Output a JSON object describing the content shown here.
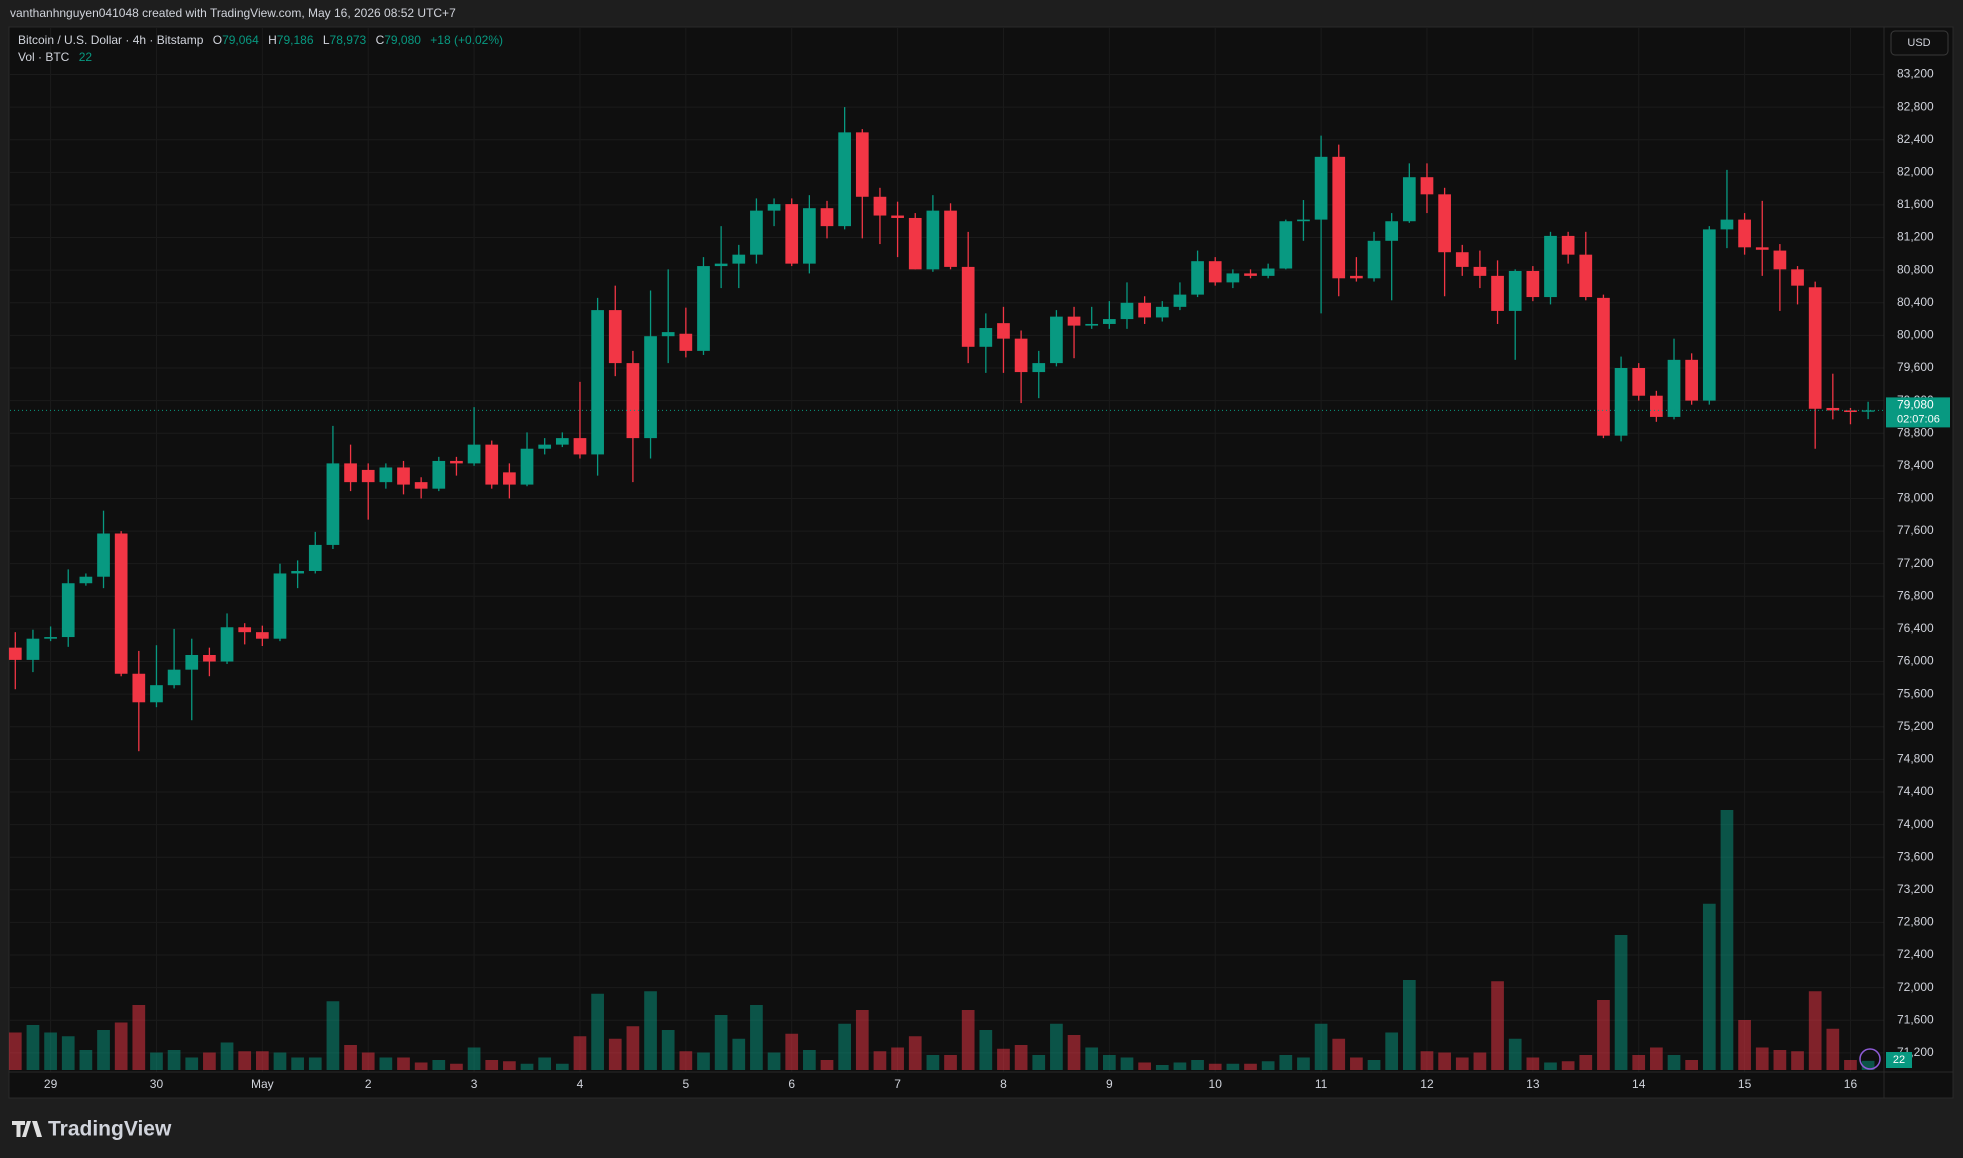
{
  "header": "vanthanhnguyen041048 created with TradingView.com, May 16, 2026 08:52 UTC+7",
  "brand": "TradingView",
  "currency_button": "USD",
  "chart_data": {
    "type": "candlestick",
    "legend": {
      "symbol": "Bitcoin / U.S. Dollar · 4h · Bitstamp",
      "items": [
        {
          "key": "O",
          "value": "79,064"
        },
        {
          "key": "H",
          "value": "79,186"
        },
        {
          "key": "L",
          "value": "78,973"
        },
        {
          "key": "C",
          "value": "79,080"
        }
      ],
      "change": "+18 (+0.02%)",
      "volume_name": "Vol · BTC",
      "volume_value": "22"
    },
    "up_color": "#089981",
    "down_color": "#f23645",
    "open": [
      76170,
      76020,
      76280,
      76300,
      76960,
      77040,
      77570,
      75850,
      75500,
      75710,
      75900,
      76080,
      76000,
      76420,
      76360,
      76280,
      77080,
      77110,
      77430,
      78430,
      78350,
      78200,
      78380,
      78200,
      78120,
      78460,
      78430,
      78660,
      78320,
      78170,
      78610,
      78660,
      78740,
      78540,
      80310,
      79660,
      78740,
      79990,
      80020,
      79810,
      80850,
      80880,
      80990,
      81530,
      81610,
      80880,
      81560,
      81340,
      82490,
      81700,
      81470,
      81440,
      80810,
      81530,
      80840,
      79860,
      80150,
      79960,
      79550,
      79660,
      80230,
      80120,
      80140,
      80200,
      80400,
      80220,
      80350,
      80500,
      80910,
      80650,
      80760,
      80730,
      80820,
      81400,
      81420,
      82190,
      80730,
      80700,
      81160,
      81400,
      81940,
      81730,
      81020,
      80840,
      80730,
      80300,
      80790,
      80470,
      81220,
      80990,
      80460,
      78770,
      79600,
      79260,
      79000,
      79700,
      79200,
      81300,
      81420,
      81080,
      81040,
      80810,
      80590,
      79110,
      79080,
      79064
    ],
    "high": [
      76360,
      76390,
      76430,
      77130,
      77080,
      77850,
      77600,
      76130,
      76200,
      76400,
      76280,
      76170,
      76590,
      76470,
      76440,
      77200,
      77240,
      77590,
      78890,
      78660,
      78430,
      78430,
      78460,
      78260,
      78510,
      78510,
      79120,
      78710,
      78430,
      78810,
      78740,
      78810,
      79430,
      80460,
      80610,
      79810,
      80550,
      80810,
      80340,
      80960,
      81340,
      81110,
      81680,
      81680,
      81680,
      81720,
      81650,
      82800,
      82530,
      81810,
      81640,
      81500,
      81720,
      81620,
      81270,
      80270,
      80350,
      80060,
      79810,
      80310,
      80350,
      80350,
      80420,
      80650,
      80480,
      80420,
      80650,
      81040,
      80960,
      80810,
      80810,
      80880,
      81420,
      81660,
      82450,
      82340,
      80960,
      81270,
      81500,
      82110,
      82110,
      81810,
      81110,
      81040,
      80920,
      80810,
      80850,
      81270,
      81270,
      81270,
      80500,
      79740,
      79660,
      79320,
      79960,
      79780,
      81340,
      82030,
      81500,
      81650,
      81120,
      80850,
      80660,
      79530,
      79110,
      79186
    ],
    "low": [
      75660,
      75870,
      76250,
      76180,
      76930,
      76900,
      75820,
      74900,
      75440,
      75670,
      75280,
      75820,
      75970,
      76210,
      76190,
      76250,
      76900,
      77080,
      77380,
      78090,
      77740,
      78120,
      78050,
      78000,
      78090,
      78280,
      78400,
      78120,
      78000,
      78150,
      78540,
      78630,
      78490,
      78280,
      79500,
      78200,
      78490,
      79660,
      79730,
      79760,
      80580,
      80580,
      80880,
      81340,
      80850,
      80760,
      81190,
      81300,
      81190,
      81120,
      80960,
      80810,
      80780,
      80810,
      79660,
      79540,
      79540,
      79170,
      79230,
      79620,
      79720,
      80080,
      80080,
      80080,
      80140,
      80170,
      80310,
      80470,
      80610,
      80580,
      80700,
      80700,
      80810,
      81160,
      80270,
      80480,
      80660,
      80660,
      80430,
      81380,
      81500,
      80480,
      80730,
      80580,
      80140,
      79700,
      80420,
      80380,
      80880,
      80430,
      78740,
      78700,
      79200,
      78940,
      78970,
      79150,
      79150,
      81070,
      80990,
      80730,
      80300,
      80380,
      78610,
      78970,
      78910,
      78973
    ],
    "close": [
      76020,
      76280,
      76300,
      76960,
      77040,
      77570,
      75850,
      75500,
      75710,
      75900,
      76080,
      76000,
      76420,
      76360,
      76280,
      77080,
      77110,
      77430,
      78430,
      78200,
      78200,
      78380,
      78170,
      78120,
      78460,
      78430,
      78660,
      78170,
      78170,
      78610,
      78660,
      78740,
      78540,
      80310,
      79660,
      78740,
      79990,
      80040,
      79810,
      80850,
      80880,
      80990,
      81530,
      81610,
      80880,
      81560,
      81340,
      82490,
      81700,
      81470,
      81440,
      80810,
      81530,
      80840,
      79860,
      80090,
      79960,
      79550,
      79660,
      80230,
      80120,
      80140,
      80200,
      80400,
      80220,
      80350,
      80500,
      80910,
      80650,
      80760,
      80730,
      80820,
      81400,
      81420,
      82190,
      80700,
      80700,
      81160,
      81400,
      81940,
      81730,
      81020,
      80840,
      80730,
      80300,
      80790,
      80470,
      81220,
      80990,
      80470,
      78770,
      79600,
      79260,
      79000,
      79700,
      79200,
      81300,
      81420,
      81080,
      81050,
      80810,
      80610,
      79100,
      79080,
      79060,
      79080
    ],
    "volume": [
      90,
      108,
      90,
      81,
      48,
      96,
      114,
      156,
      42,
      48,
      30,
      42,
      66,
      45,
      45,
      42,
      30,
      30,
      165,
      60,
      42,
      30,
      30,
      18,
      24,
      15,
      54,
      24,
      21,
      15,
      30,
      15,
      81,
      183,
      75,
      105,
      189,
      96,
      45,
      42,
      132,
      75,
      156,
      42,
      87,
      48,
      24,
      111,
      144,
      45,
      54,
      81,
      36,
      36,
      144,
      96,
      51,
      60,
      36,
      111,
      84,
      54,
      36,
      30,
      18,
      12,
      18,
      24,
      15,
      15,
      15,
      21,
      36,
      30,
      111,
      75,
      30,
      24,
      90,
      216,
      45,
      42,
      30,
      42,
      213,
      75,
      30,
      18,
      21,
      36,
      168,
      324,
      36,
      54,
      36,
      24,
      399,
      624,
      120,
      54,
      48,
      45,
      189,
      99,
      24,
      22
    ],
    "xlim": [
      -0.3,
      105.9
    ],
    "xticks": [
      {
        "value": 2,
        "label": "29"
      },
      {
        "value": 8,
        "label": "30"
      },
      {
        "value": 14,
        "label": "May"
      },
      {
        "value": 20,
        "label": "2"
      },
      {
        "value": 26,
        "label": "3"
      },
      {
        "value": 32,
        "label": "4"
      },
      {
        "value": 38,
        "label": "5"
      },
      {
        "value": 44,
        "label": "6"
      },
      {
        "value": 50,
        "label": "7"
      },
      {
        "value": 56,
        "label": "8"
      },
      {
        "value": 62,
        "label": "9"
      },
      {
        "value": 68,
        "label": "10"
      },
      {
        "value": 74,
        "label": "11"
      },
      {
        "value": 80,
        "label": "12"
      },
      {
        "value": 86,
        "label": "13"
      },
      {
        "value": 92,
        "label": "14"
      },
      {
        "value": 98,
        "label": "15"
      },
      {
        "value": 104,
        "label": "16"
      }
    ],
    "ylim": [
      70990,
      83770
    ],
    "yticks": [
      {
        "value": 83200,
        "label": "83,200"
      },
      {
        "value": 82800,
        "label": "82,800"
      },
      {
        "value": 82400,
        "label": "82,400"
      },
      {
        "value": 82000,
        "label": "82,000"
      },
      {
        "value": 81600,
        "label": "81,600"
      },
      {
        "value": 81200,
        "label": "81,200"
      },
      {
        "value": 80800,
        "label": "80,800"
      },
      {
        "value": 80400,
        "label": "80,400"
      },
      {
        "value": 80000,
        "label": "80,000"
      },
      {
        "value": 79600,
        "label": "79,600"
      },
      {
        "value": 79200,
        "label": "79,200"
      },
      {
        "value": 78800,
        "label": "78,800"
      },
      {
        "value": 78400,
        "label": "78,400"
      },
      {
        "value": 78000,
        "label": "78,000"
      },
      {
        "value": 77600,
        "label": "77,600"
      },
      {
        "value": 77200,
        "label": "77,200"
      },
      {
        "value": 76800,
        "label": "76,800"
      },
      {
        "value": 76400,
        "label": "76,400"
      },
      {
        "value": 76000,
        "label": "76,000"
      },
      {
        "value": 75600,
        "label": "75,600"
      },
      {
        "value": 75200,
        "label": "75,200"
      },
      {
        "value": 74800,
        "label": "74,800"
      },
      {
        "value": 74400,
        "label": "74,400"
      },
      {
        "value": 74000,
        "label": "74,000"
      },
      {
        "value": 73600,
        "label": "73,600"
      },
      {
        "value": 73200,
        "label": "73,200"
      },
      {
        "value": 72800,
        "label": "72,800"
      },
      {
        "value": 72400,
        "label": "72,400"
      },
      {
        "value": 72000,
        "label": "72,000"
      },
      {
        "value": 71600,
        "label": "71,600"
      },
      {
        "value": 71200,
        "label": "71,200"
      }
    ],
    "grid": true,
    "last_price": {
      "value": 79080,
      "label": "79,080"
    },
    "countdown": "02:07:06"
  }
}
